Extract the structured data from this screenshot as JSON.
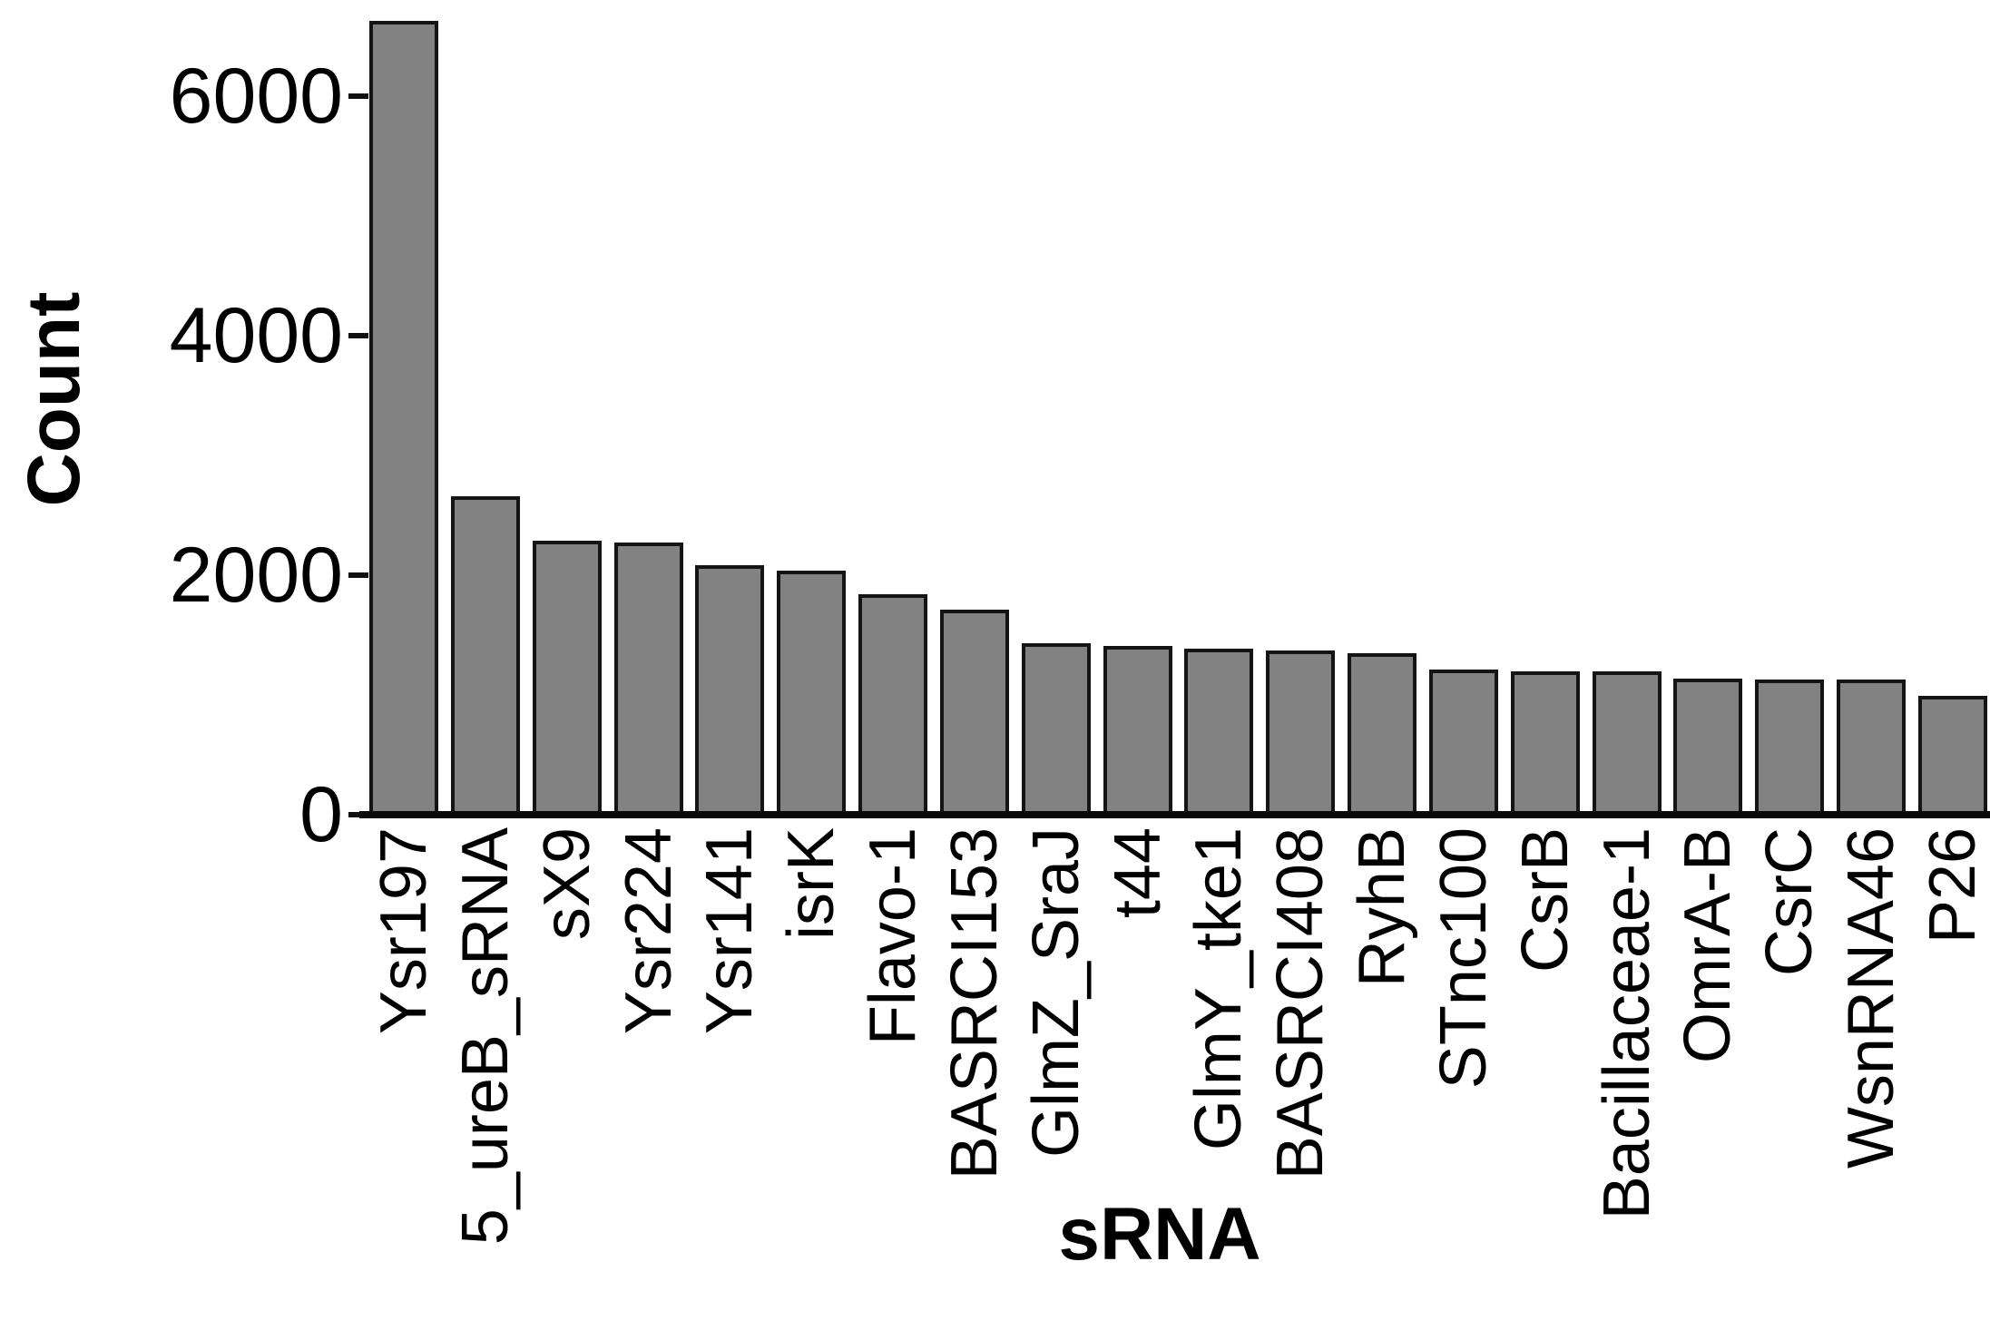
{
  "chart_data": {
    "type": "bar",
    "title": "",
    "xlabel": "sRNA",
    "ylabel": "Count",
    "categories": [
      "Ysr197",
      "5_ureB_sRNA",
      "sX9",
      "Ysr224",
      "Ysr141",
      "isrK",
      "Flavo-1",
      "BASRCI153",
      "GlmZ_SraJ",
      "t44",
      "GlmY_tke1",
      "BASRCI408",
      "RyhB",
      "STnc100",
      "CsrB",
      "Bacillaceae-1",
      "OmrA-B",
      "CsrC",
      "WsnRNA46",
      "P26"
    ],
    "values": [
      6630,
      2660,
      2290,
      2270,
      2080,
      2040,
      1840,
      1710,
      1430,
      1410,
      1390,
      1370,
      1350,
      1210,
      1200,
      1195,
      1140,
      1130,
      1125,
      990
    ],
    "yticks": [
      0,
      2000,
      4000,
      6000
    ],
    "ylim": [
      0,
      6700
    ],
    "grid": false,
    "legend": "none",
    "bar_fill_color": "#828282",
    "bar_border_color": "#141414",
    "axis_color": "#0a0a0a",
    "background_color": "#ffffff"
  }
}
